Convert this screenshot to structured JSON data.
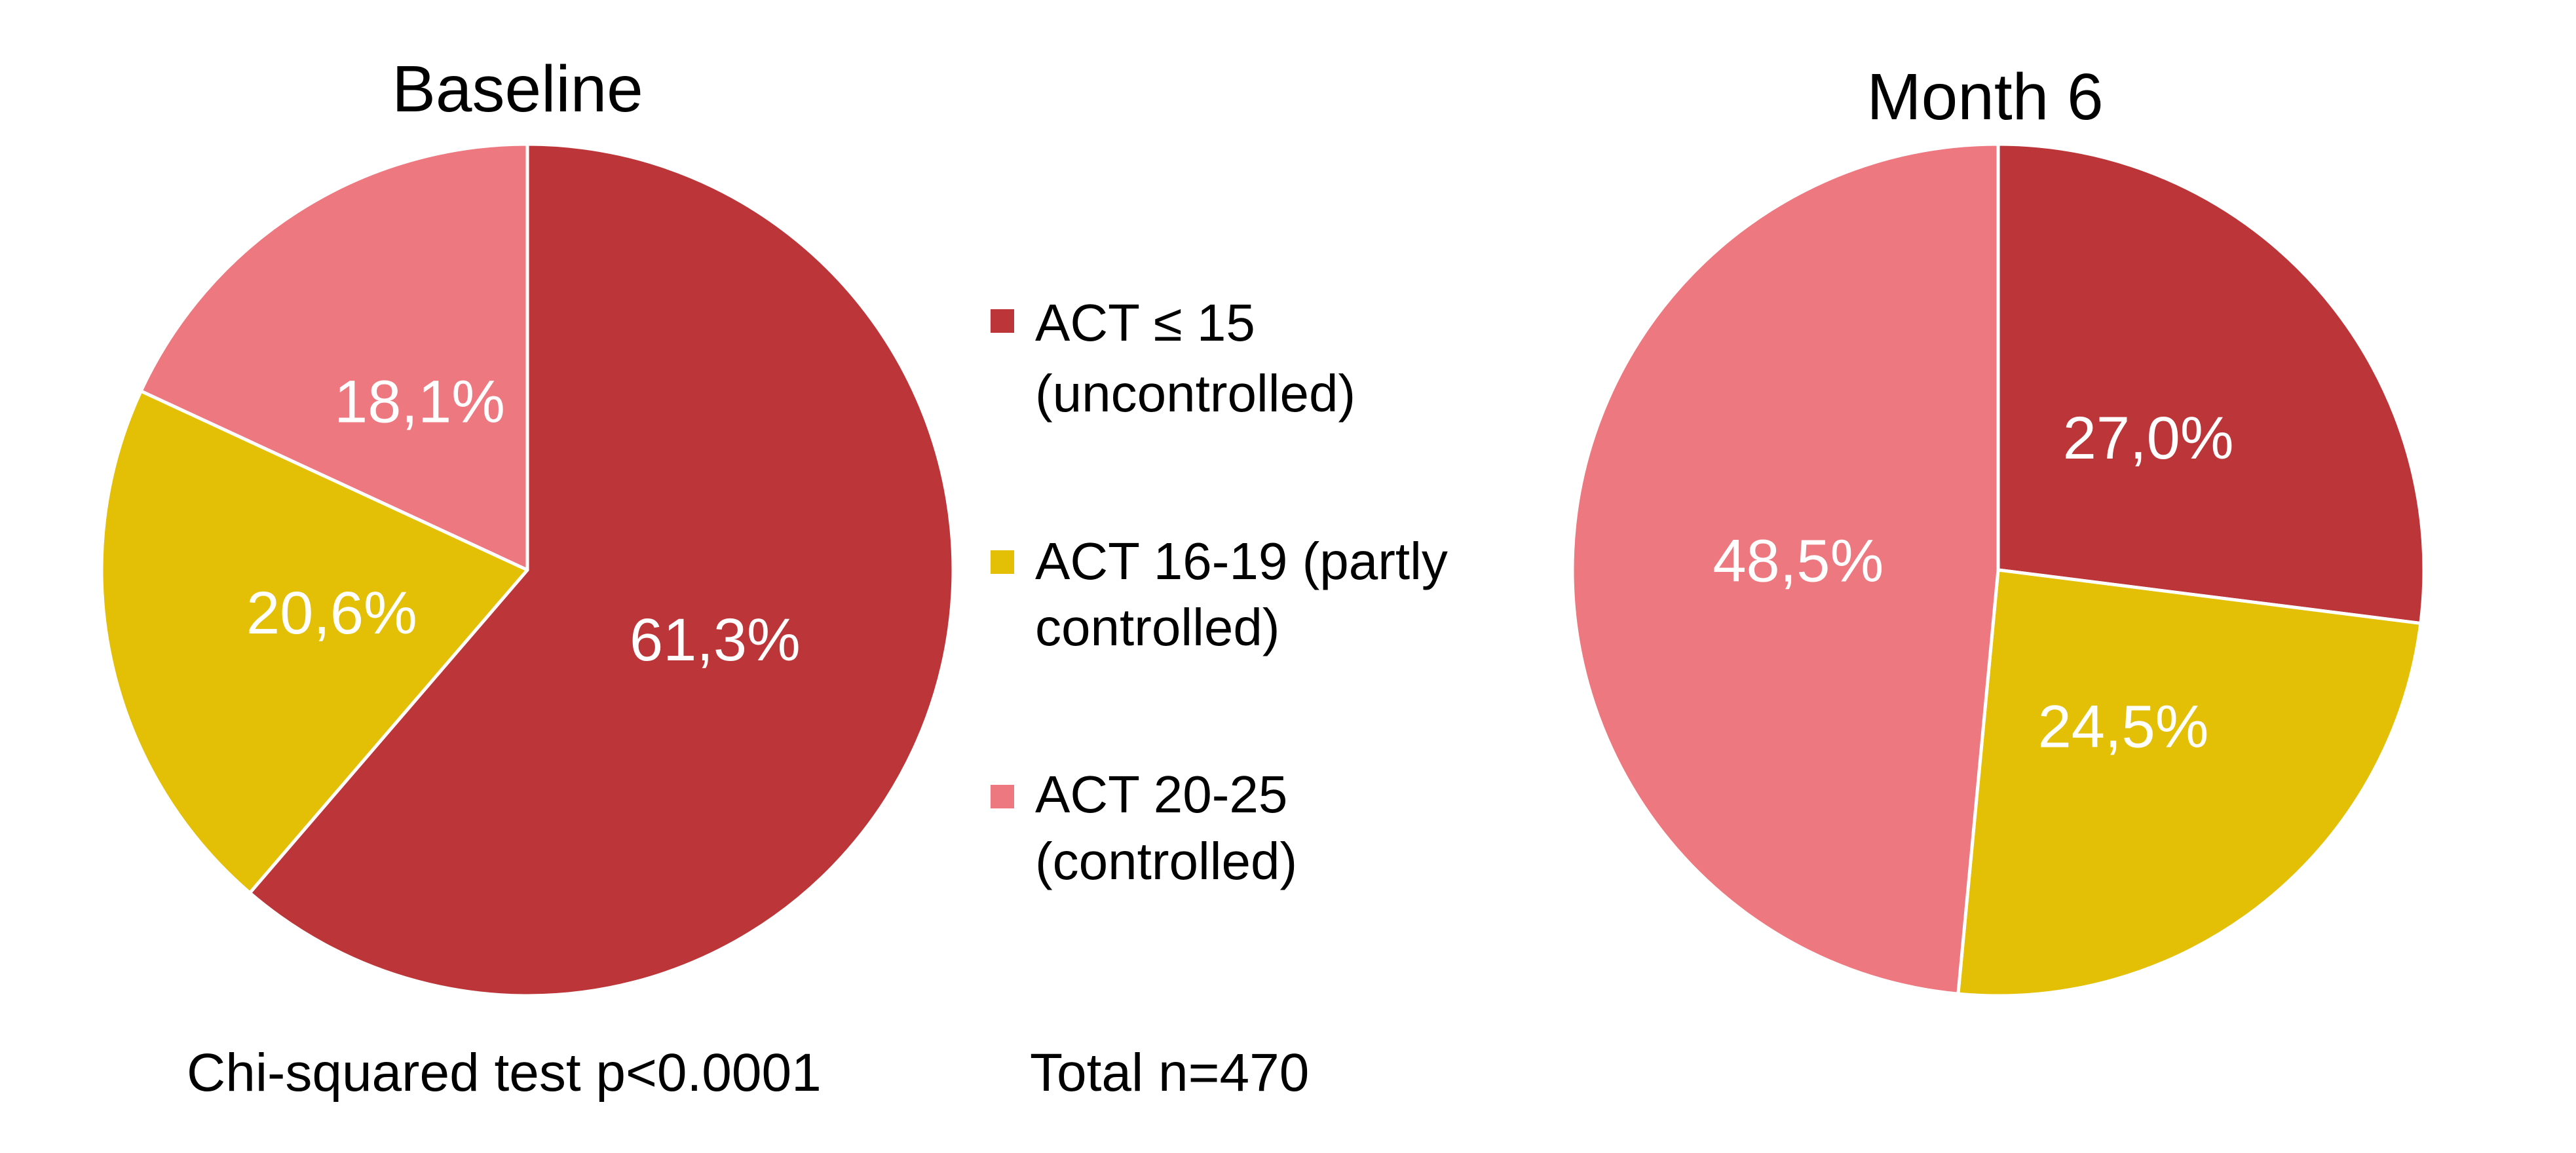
{
  "legend": [
    {
      "lines": [
        "ACT ≤ 15",
        "(uncontrolled)"
      ],
      "color": "#BC3538"
    },
    {
      "lines": [
        "ACT 16-19 (partly",
        "controlled)"
      ],
      "color": "#E3C005"
    },
    {
      "lines": [
        "ACT 20-25",
        "(controlled)"
      ],
      "color": "#EE7880"
    }
  ],
  "footnotes": {
    "test": "Chi-squared test p<0.0001",
    "total": "Total n=470"
  },
  "chart_data": [
    {
      "type": "pie",
      "title": "Baseline",
      "categories": [
        "ACT ≤ 15 (uncontrolled)",
        "ACT 16-19 (partly controlled)",
        "ACT 20-25 (controlled)"
      ],
      "values": [
        61.3,
        20.6,
        18.1
      ],
      "labels": [
        "61,3%",
        "20,6%",
        "18,1%"
      ],
      "colors": [
        "#BC3538",
        "#E3C005",
        "#EE7880"
      ]
    },
    {
      "type": "pie",
      "title": "Month 6",
      "categories": [
        "ACT ≤ 15 (uncontrolled)",
        "ACT 16-19 (partly controlled)",
        "ACT 20-25 (controlled)"
      ],
      "values": [
        27.0,
        24.5,
        48.5
      ],
      "labels": [
        "27,0%",
        "24,5%",
        "48,5%"
      ],
      "colors": [
        "#BC3538",
        "#E3C005",
        "#EE7880"
      ]
    }
  ]
}
